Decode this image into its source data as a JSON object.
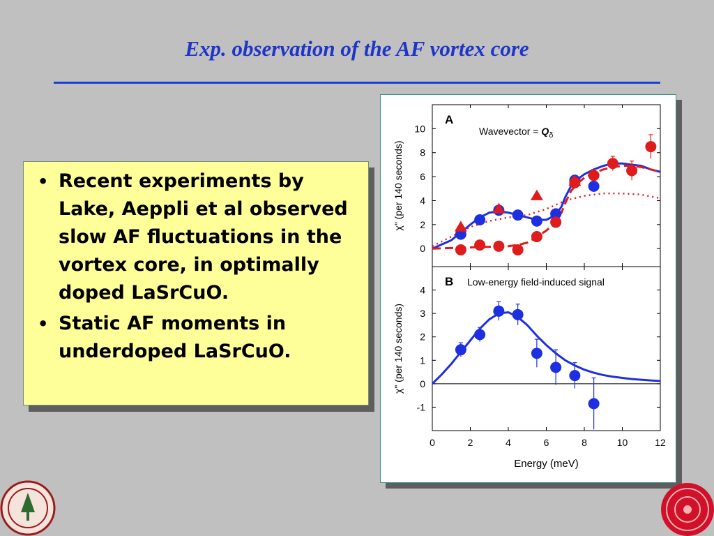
{
  "slide": {
    "title": "Exp. observation of the AF vortex core",
    "bullets": [
      "Recent experiments by Lake, Aeppli et al observed slow AF fluctuations in the vortex core, in optimally doped LaSrCuO.",
      "Static AF moments in underdoped LaSrCuO."
    ],
    "bullet_symbol": "•"
  },
  "colors": {
    "title": "#1f35c8",
    "textbox_bg": "#ffff99",
    "slide_bg": "#c0c0c0",
    "series_blue": "#1e2fe0",
    "series_red": "#e01b1b"
  },
  "chart_data": [
    {
      "panel": "A",
      "type": "scatter",
      "label": "A",
      "annotation_prefix": "Wavevector = ",
      "annotation_symbol": "Q",
      "annotation_subscript": "δ",
      "ylabel": "χ\"  (per 140 seconds)",
      "xlim": [
        0,
        12
      ],
      "ylim": [
        -1.5,
        12
      ],
      "yticks": [
        0,
        2,
        4,
        6,
        8,
        10
      ],
      "series": [
        {
          "marker": "circle",
          "color": "#1e2fe0",
          "x": [
            1.5,
            2.5,
            3.5,
            4.5,
            5.5,
            6.5,
            7.5,
            8.5
          ],
          "y": [
            1.2,
            2.4,
            3.2,
            2.8,
            2.3,
            2.9,
            5.7,
            5.2
          ],
          "err": [
            0.3,
            0.3,
            0.3,
            0.3,
            0.3,
            0.4,
            0.3,
            0.4
          ]
        },
        {
          "marker": "circle",
          "color": "#e01b1b",
          "x": [
            1.5,
            2.5,
            3.5,
            4.5,
            5.5,
            6.5,
            7.5,
            8.5,
            9.5,
            10.5,
            11.5
          ],
          "y": [
            -0.1,
            0.3,
            0.2,
            -0.1,
            1.0,
            2.2,
            5.5,
            6.1,
            7.1,
            6.5,
            8.5
          ],
          "err": [
            0.2,
            0.2,
            0.2,
            0.2,
            0.3,
            0.3,
            0.5,
            0.5,
            0.6,
            0.8,
            1.0
          ]
        },
        {
          "marker": "triangle",
          "color": "#e01b1b",
          "x": [
            1.5,
            3.5,
            5.5,
            7.5
          ],
          "y": [
            1.8,
            3.3,
            4.4,
            5.6
          ],
          "err": [
            0,
            0,
            0,
            0
          ]
        }
      ],
      "fits": [
        {
          "style": "solid",
          "color": "#1e2fe0",
          "x": [
            0,
            1,
            2,
            2.5,
            3,
            3.5,
            4,
            4.5,
            5,
            5.5,
            6,
            6.5,
            6.8,
            7,
            7.3,
            7.5,
            8,
            8.5,
            9,
            9.5,
            10,
            10.5,
            11,
            11.5,
            12
          ],
          "y": [
            0,
            0.7,
            2.0,
            2.6,
            3.0,
            3.1,
            3.0,
            2.8,
            2.6,
            2.4,
            2.4,
            2.8,
            3.5,
            4.3,
            5.2,
            5.6,
            6.2,
            6.6,
            6.9,
            7.1,
            7.1,
            7.0,
            6.9,
            6.6,
            6.4
          ]
        },
        {
          "style": "dashed",
          "color": "#e01b1b",
          "x": [
            0,
            1,
            2,
            3,
            4,
            4.5,
            5,
            5.5,
            6,
            6.5,
            6.8,
            7,
            7.3,
            7.6,
            8,
            8.5,
            9,
            9.5,
            10,
            10.5,
            11,
            11.5,
            12
          ],
          "y": [
            0,
            0.05,
            0.1,
            0.15,
            0.2,
            0.3,
            0.5,
            1.0,
            1.5,
            2.2,
            3.0,
            3.8,
            4.8,
            5.4,
            5.9,
            6.3,
            6.6,
            6.8,
            6.9,
            6.9,
            6.8,
            6.6,
            6.4
          ]
        },
        {
          "style": "dotted",
          "color": "#e01b1b",
          "x": [
            0,
            1,
            2,
            3,
            4,
            5,
            6,
            7,
            8,
            9,
            10,
            11,
            12
          ],
          "y": [
            0.2,
            1.0,
            1.8,
            2.3,
            2.6,
            2.8,
            3.3,
            4.0,
            4.4,
            4.6,
            4.6,
            4.5,
            4.2
          ]
        }
      ]
    },
    {
      "panel": "B",
      "type": "scatter",
      "label": "B",
      "annotation": "Low-energy field-induced signal",
      "xlabel": "Energy (meV)",
      "ylabel": "χ\"  (per 140 seconds)",
      "xlim": [
        0,
        12
      ],
      "ylim": [
        -2,
        5
      ],
      "xticks": [
        0,
        2,
        4,
        6,
        8,
        10,
        12
      ],
      "yticks": [
        -1,
        0,
        1,
        2,
        3,
        4
      ],
      "series": [
        {
          "marker": "circle",
          "color": "#1e2fe0",
          "x": [
            1.5,
            2.5,
            3.5,
            4.5,
            5.5,
            6.5,
            7.5,
            8.5
          ],
          "y": [
            1.45,
            2.1,
            3.1,
            2.95,
            1.3,
            0.7,
            0.35,
            -0.85
          ],
          "err": [
            0.3,
            0.3,
            0.4,
            0.45,
            0.6,
            0.75,
            0.55,
            1.1
          ]
        }
      ],
      "fits": [
        {
          "style": "solid",
          "color": "#1e2fe0",
          "x": [
            0,
            0.5,
            1,
            1.5,
            2,
            2.5,
            3,
            3.5,
            4,
            4.5,
            5,
            5.5,
            6,
            6.5,
            7,
            7.5,
            8,
            8.5,
            9,
            9.5,
            10,
            10.5,
            11,
            11.5,
            12
          ],
          "y": [
            0,
            0.4,
            0.85,
            1.35,
            1.85,
            2.35,
            2.75,
            3.0,
            3.05,
            2.85,
            2.5,
            2.05,
            1.65,
            1.3,
            1.0,
            0.78,
            0.6,
            0.47,
            0.37,
            0.3,
            0.25,
            0.2,
            0.17,
            0.14,
            0.12
          ]
        }
      ]
    }
  ]
}
